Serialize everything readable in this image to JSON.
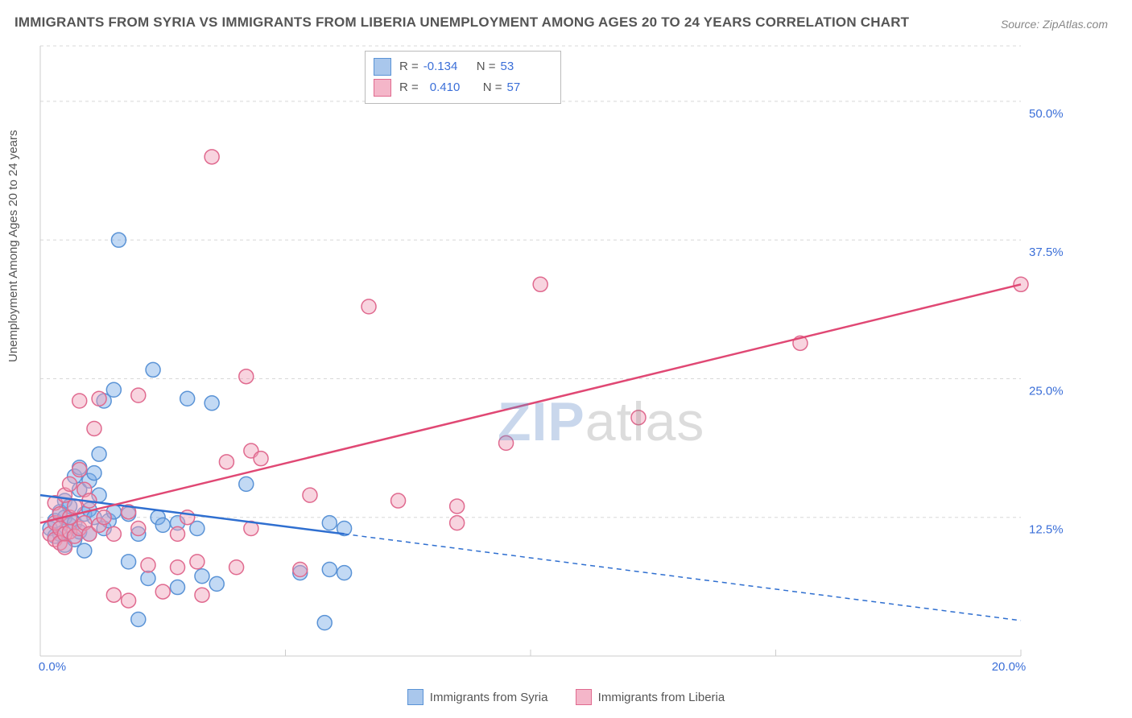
{
  "title": "IMMIGRANTS FROM SYRIA VS IMMIGRANTS FROM LIBERIA UNEMPLOYMENT AMONG AGES 20 TO 24 YEARS CORRELATION CHART",
  "source": "Source: ZipAtlas.com",
  "y_axis_label": "Unemployment Among Ages 20 to 24 years",
  "watermark": {
    "part1": "ZIP",
    "part2": "atlas"
  },
  "chart": {
    "type": "scatter",
    "background_color": "#ffffff",
    "grid_color": "#d8d8d8",
    "axis_color": "#cccccc",
    "xlim": [
      0,
      20
    ],
    "ylim": [
      0,
      55
    ],
    "x_ticks": [
      0,
      5,
      10,
      15,
      20
    ],
    "x_tick_labels": [
      "0.0%",
      "",
      "",
      "",
      "20.0%"
    ],
    "y_grid_values": [
      12.5,
      25,
      37.5,
      50,
      55
    ],
    "y_tick_labels": [
      "12.5%",
      "25.0%",
      "37.5%",
      "50.0%",
      ""
    ],
    "marker_radius": 9,
    "marker_stroke_width": 1.5,
    "line_width": 2.5,
    "series": [
      {
        "name": "Immigrants from Syria",
        "color_fill": "rgba(120,170,230,0.45)",
        "color_stroke": "#5a93d6",
        "swatch_fill": "#a9c7ec",
        "swatch_border": "#5a93d6",
        "line_color": "#2f6fd0",
        "R": "-0.134",
        "N": "53",
        "trend_solid": {
          "x1": 0,
          "y1": 14.5,
          "x2": 6.2,
          "y2": 11.0
        },
        "trend_dashed": {
          "x1": 6.2,
          "y1": 11.0,
          "x2": 20,
          "y2": 3.2
        },
        "points": [
          [
            0.2,
            11.5
          ],
          [
            0.3,
            12.2
          ],
          [
            0.3,
            10.8
          ],
          [
            0.4,
            13.0
          ],
          [
            0.4,
            11.0
          ],
          [
            0.5,
            12.5
          ],
          [
            0.5,
            10.0
          ],
          [
            0.5,
            14.0
          ],
          [
            0.6,
            11.8
          ],
          [
            0.6,
            13.5
          ],
          [
            0.7,
            12.0
          ],
          [
            0.7,
            16.2
          ],
          [
            0.7,
            10.5
          ],
          [
            0.8,
            15.0
          ],
          [
            0.8,
            11.2
          ],
          [
            0.8,
            17.0
          ],
          [
            0.9,
            12.8
          ],
          [
            0.9,
            9.5
          ],
          [
            1.0,
            13.2
          ],
          [
            1.0,
            15.8
          ],
          [
            1.0,
            11.0
          ],
          [
            1.1,
            16.5
          ],
          [
            1.1,
            12.5
          ],
          [
            1.2,
            14.5
          ],
          [
            1.2,
            18.2
          ],
          [
            1.3,
            11.5
          ],
          [
            1.3,
            23.0
          ],
          [
            1.4,
            12.2
          ],
          [
            1.5,
            24.0
          ],
          [
            1.5,
            13.0
          ],
          [
            1.6,
            37.5
          ],
          [
            1.8,
            12.8
          ],
          [
            1.8,
            8.5
          ],
          [
            2.0,
            11.0
          ],
          [
            2.0,
            3.3
          ],
          [
            2.2,
            7.0
          ],
          [
            2.3,
            25.8
          ],
          [
            2.4,
            12.5
          ],
          [
            2.5,
            11.8
          ],
          [
            2.8,
            6.2
          ],
          [
            2.8,
            12.0
          ],
          [
            3.0,
            23.2
          ],
          [
            3.2,
            11.5
          ],
          [
            3.3,
            7.2
          ],
          [
            3.5,
            22.8
          ],
          [
            3.6,
            6.5
          ],
          [
            4.2,
            15.5
          ],
          [
            5.3,
            7.5
          ],
          [
            5.8,
            3.0
          ],
          [
            5.9,
            7.8
          ],
          [
            5.9,
            12.0
          ],
          [
            6.2,
            11.5
          ],
          [
            6.2,
            7.5
          ]
        ]
      },
      {
        "name": "Immigrants from Liberia",
        "color_fill": "rgba(240,160,185,0.45)",
        "color_stroke": "#e06a8f",
        "swatch_fill": "#f4b6c9",
        "swatch_border": "#e06a8f",
        "line_color": "#e04874",
        "R": "0.410",
        "N": "57",
        "trend_solid": {
          "x1": 0,
          "y1": 12.0,
          "x2": 20,
          "y2": 33.5
        },
        "points": [
          [
            0.2,
            11.0
          ],
          [
            0.3,
            10.5
          ],
          [
            0.3,
            12.0
          ],
          [
            0.3,
            13.8
          ],
          [
            0.4,
            11.5
          ],
          [
            0.4,
            10.2
          ],
          [
            0.4,
            12.8
          ],
          [
            0.5,
            11.0
          ],
          [
            0.5,
            14.5
          ],
          [
            0.5,
            9.8
          ],
          [
            0.6,
            12.5
          ],
          [
            0.6,
            11.2
          ],
          [
            0.6,
            15.5
          ],
          [
            0.7,
            10.8
          ],
          [
            0.7,
            13.5
          ],
          [
            0.8,
            11.5
          ],
          [
            0.8,
            16.8
          ],
          [
            0.8,
            23.0
          ],
          [
            0.9,
            12.0
          ],
          [
            0.9,
            15.0
          ],
          [
            1.0,
            11.0
          ],
          [
            1.0,
            14.0
          ],
          [
            1.1,
            20.5
          ],
          [
            1.2,
            11.8
          ],
          [
            1.2,
            23.2
          ],
          [
            1.3,
            12.5
          ],
          [
            1.5,
            11.0
          ],
          [
            1.5,
            5.5
          ],
          [
            1.8,
            13.0
          ],
          [
            1.8,
            5.0
          ],
          [
            2.0,
            11.5
          ],
          [
            2.0,
            23.5
          ],
          [
            2.2,
            8.2
          ],
          [
            2.5,
            5.8
          ],
          [
            2.8,
            11.0
          ],
          [
            2.8,
            8.0
          ],
          [
            3.0,
            12.5
          ],
          [
            3.2,
            8.5
          ],
          [
            3.3,
            5.5
          ],
          [
            3.5,
            45.0
          ],
          [
            3.8,
            17.5
          ],
          [
            4.0,
            8.0
          ],
          [
            4.2,
            25.2
          ],
          [
            4.3,
            18.5
          ],
          [
            4.3,
            11.5
          ],
          [
            4.5,
            17.8
          ],
          [
            5.3,
            7.8
          ],
          [
            5.5,
            14.5
          ],
          [
            6.7,
            31.5
          ],
          [
            7.3,
            14.0
          ],
          [
            8.5,
            13.5
          ],
          [
            8.5,
            12.0
          ],
          [
            9.5,
            19.2
          ],
          [
            10.2,
            33.5
          ],
          [
            12.2,
            21.5
          ],
          [
            15.5,
            28.2
          ],
          [
            20.0,
            33.5
          ]
        ]
      }
    ]
  },
  "stat_box": {
    "labels": {
      "R": "R =",
      "N": "N ="
    }
  },
  "bottom_legend": {
    "items": [
      "Immigrants from Syria",
      "Immigrants from Liberia"
    ]
  }
}
